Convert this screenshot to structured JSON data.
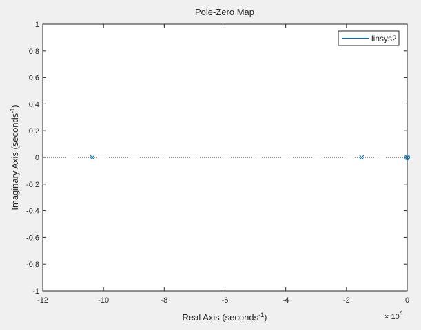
{
  "chart_data": {
    "type": "scatter",
    "title": "Pole-Zero Map",
    "xlabel": {
      "base": "Real Axis (seconds",
      "sup": "-1",
      "end": ")"
    },
    "ylabel": {
      "base": "Imaginary Axis (seconds",
      "sup": "-1",
      "end": ")"
    },
    "x_exponent_base": "× 10",
    "x_exponent_power": "4",
    "xlim": [
      -12,
      0
    ],
    "ylim": [
      -1,
      1
    ],
    "xticks": [
      -12,
      -10,
      -8,
      -6,
      -4,
      -2,
      0
    ],
    "yticks": [
      -1,
      -0.8,
      -0.6,
      -0.4,
      -0.2,
      0,
      0.2,
      0.4,
      0.6,
      0.8,
      1
    ],
    "xtick_labels": [
      "-12",
      "-10",
      "-8",
      "-6",
      "-4",
      "-2",
      "0"
    ],
    "ytick_labels": [
      "-1",
      "-0.8",
      "-0.6",
      "-0.4",
      "-0.2",
      "0",
      "0.2",
      "0.4",
      "0.6",
      "0.8",
      "1"
    ],
    "grid": false,
    "legend_position": "top-right",
    "series": [
      {
        "name": "linsys2",
        "color": "#0072bd",
        "poles": [
          {
            "x": -10.37,
            "y": 0
          },
          {
            "x": -1.5,
            "y": 0
          },
          {
            "x": 0,
            "y": 0
          }
        ],
        "zeros": [
          {
            "x": 0,
            "y": 0
          }
        ]
      }
    ],
    "reference_line": {
      "y": 0,
      "style": "dotted",
      "color": "#262626"
    }
  }
}
